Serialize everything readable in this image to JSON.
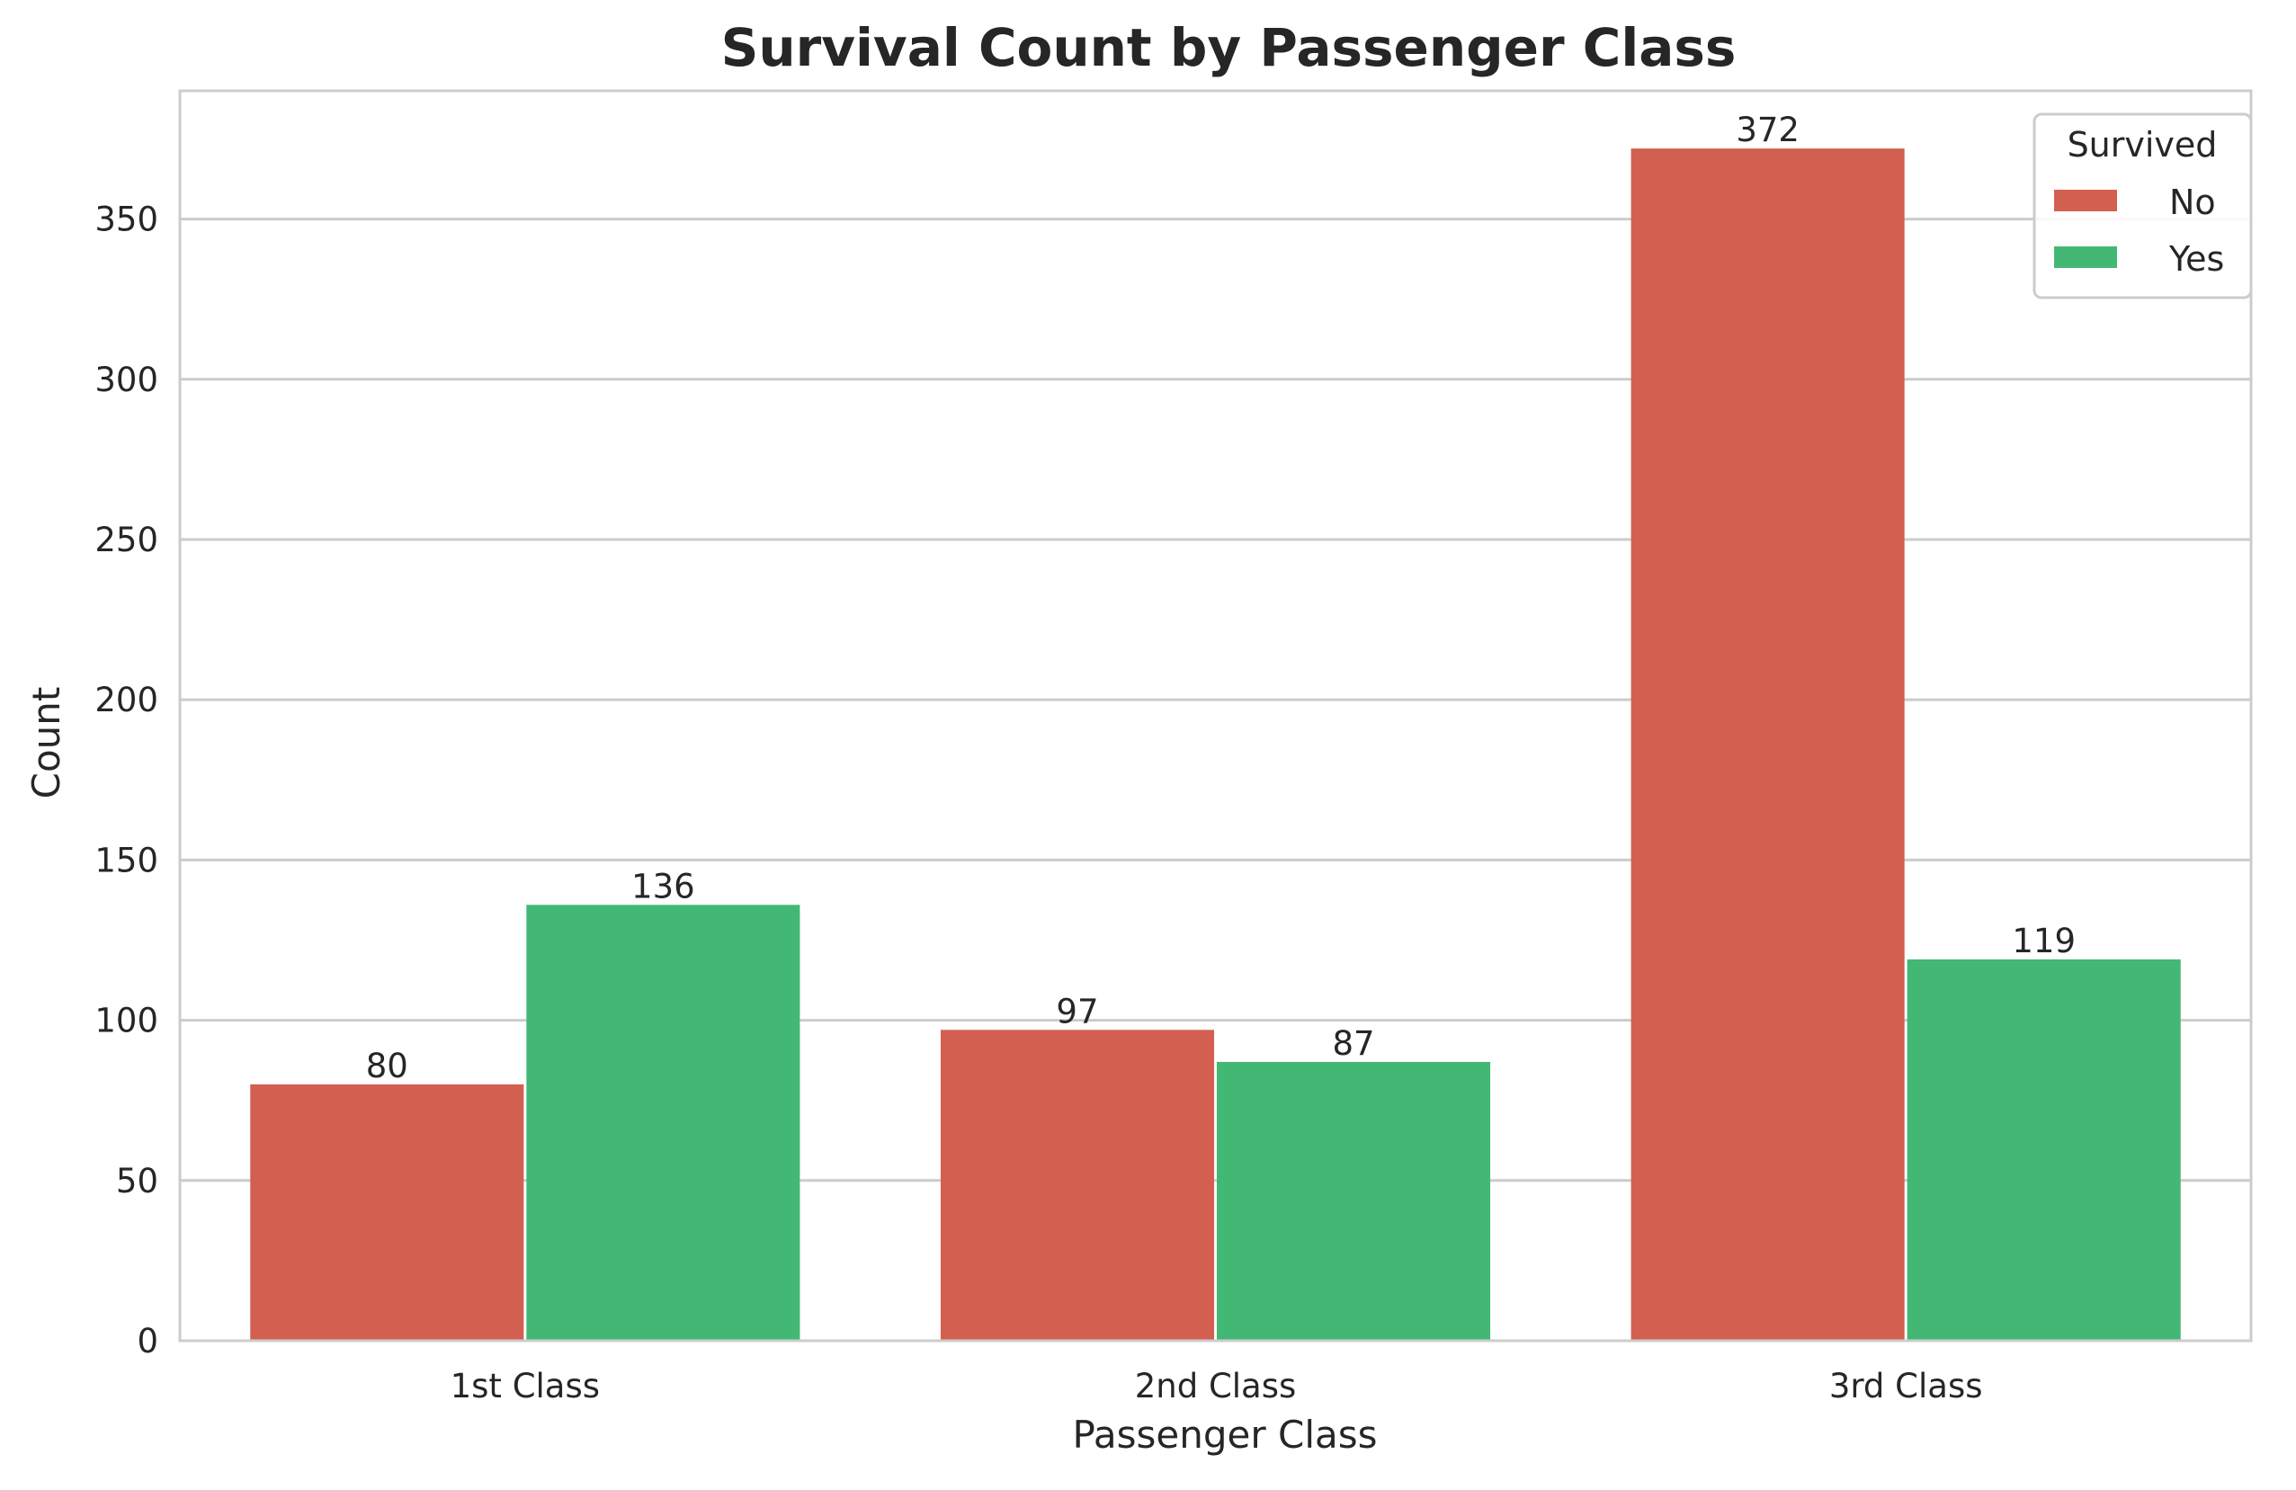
{
  "chart_data": {
    "type": "bar",
    "title": "Survival Count by Passenger Class",
    "xlabel": "Passenger Class",
    "ylabel": "Count",
    "categories": [
      "1st Class",
      "2nd Class",
      "3rd Class"
    ],
    "series": [
      {
        "name": "No",
        "values": [
          80,
          97,
          372
        ],
        "color": "#d35f50"
      },
      {
        "name": "Yes",
        "values": [
          136,
          87,
          119
        ],
        "color": "#43b874"
      }
    ],
    "ylim": [
      0,
      390
    ],
    "yticks": [
      0,
      50,
      100,
      150,
      200,
      250,
      300,
      350
    ],
    "grid": true,
    "legend": {
      "title": "Survived",
      "placement": "top-right"
    },
    "colors": {
      "grid": "#cccccc",
      "frame": "#cccccc",
      "text": "#262626"
    }
  }
}
